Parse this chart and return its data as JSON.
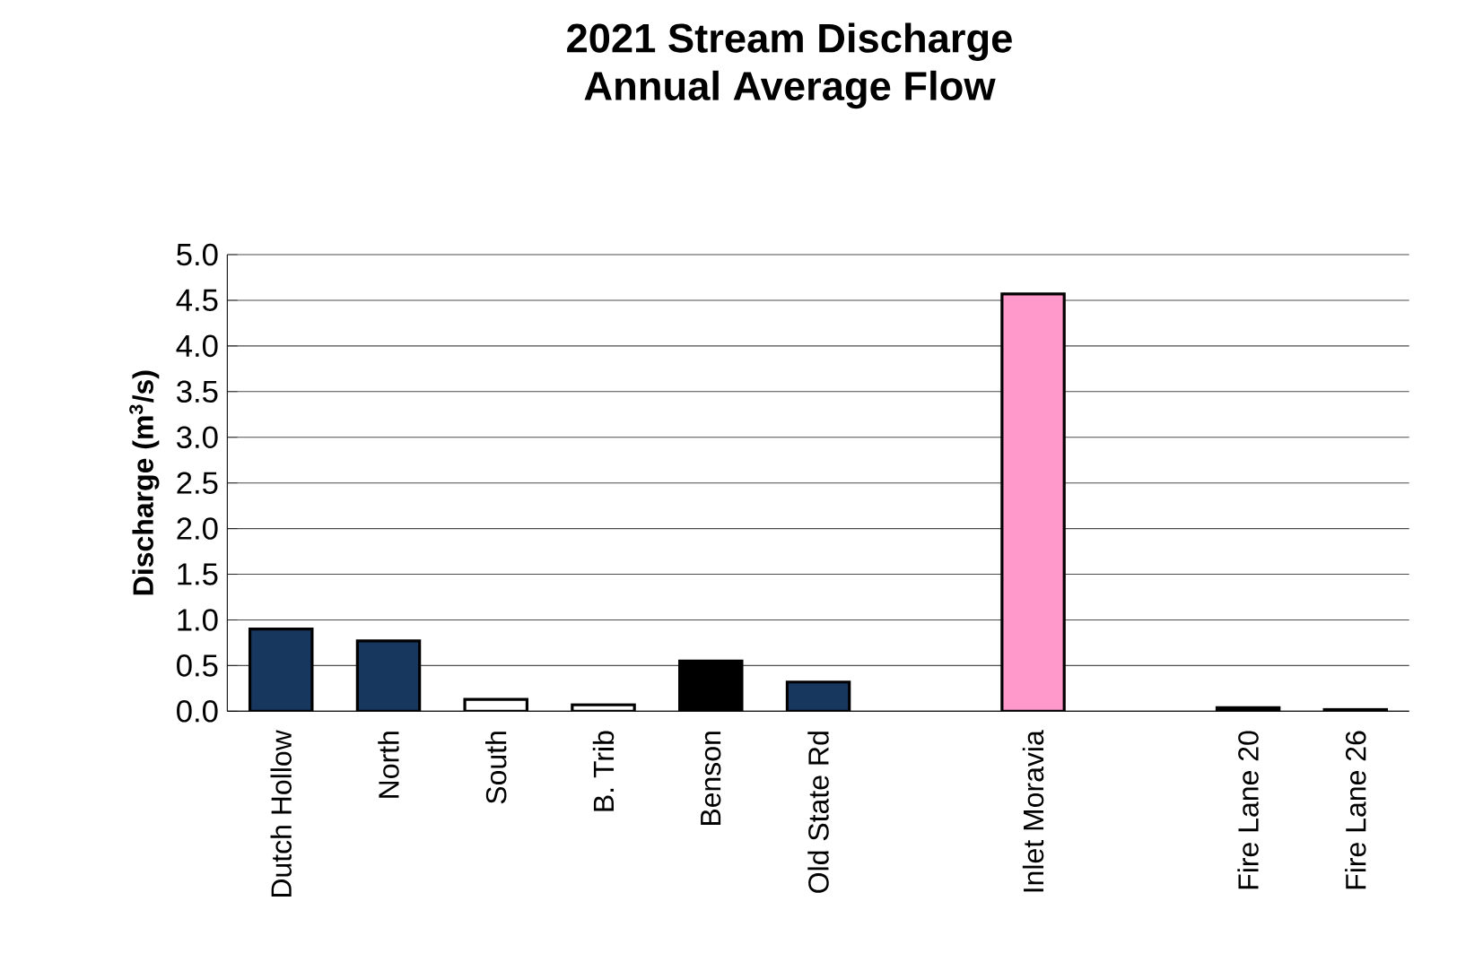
{
  "chart_data": {
    "type": "bar",
    "title": "2021 Stream Discharge",
    "subtitle": "Annual Average Flow",
    "ylabel": "Discharge (m$^{3}$/s)",
    "categories": [
      "Dutch Hollow",
      "North",
      "South",
      "B. Trib",
      "Benson",
      "Old State Rd",
      null,
      "Inlet Moravia",
      null,
      "Fire Lane 20",
      "Fire Lane 26"
    ],
    "values": [
      0.9,
      0.77,
      0.13,
      0.07,
      0.55,
      0.32,
      null,
      4.57,
      null,
      0.04,
      0.02
    ],
    "colors": [
      "#17375e",
      "#17375e",
      "#ffffff",
      "#ffffff",
      "#000000",
      "#17375e",
      null,
      "#ff99cc",
      null,
      "#000000",
      "#000000"
    ],
    "ylim": [
      0,
      5
    ],
    "yticks": [
      {
        "value": 0,
        "label": "0.0"
      },
      {
        "value": 0.5,
        "label": "0.5"
      },
      {
        "value": 1,
        "label": "1.0"
      },
      {
        "value": 1.5,
        "label": "1.5"
      },
      {
        "value": 2,
        "label": "2.0"
      },
      {
        "value": 2.5,
        "label": "2.5"
      },
      {
        "value": 3,
        "label": "3.0"
      },
      {
        "value": 3.5,
        "label": "3.5"
      },
      {
        "value": 4,
        "label": "4.0"
      },
      {
        "value": 4.5,
        "label": "4.5"
      },
      {
        "value": 5,
        "label": "5.0"
      }
    ],
    "grid": "y"
  }
}
